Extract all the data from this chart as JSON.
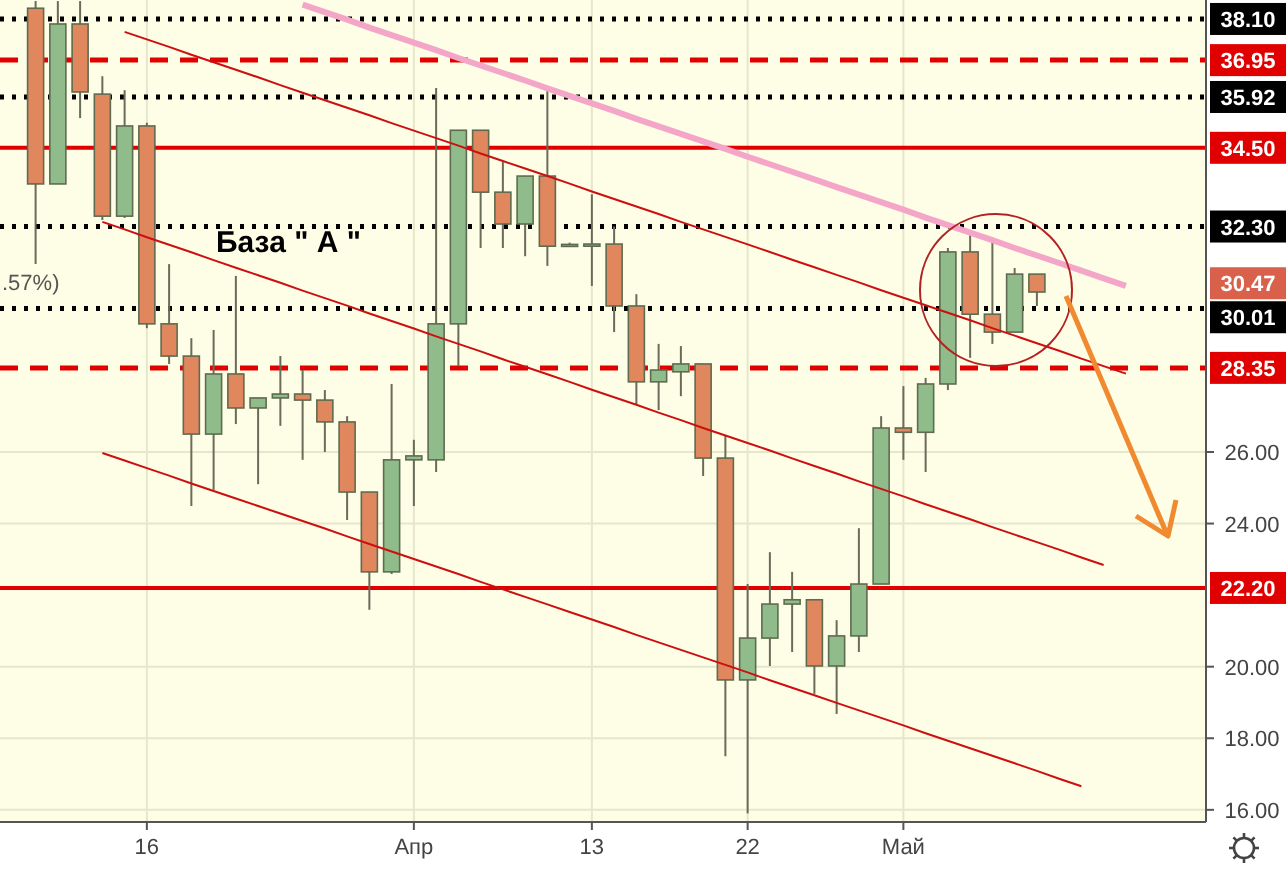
{
  "chart_data": {
    "type": "candlestick",
    "categories": [
      null,
      null,
      null,
      null,
      null,
      "16",
      null,
      null,
      null,
      null,
      null,
      null,
      null,
      null,
      null,
      null,
      null,
      "Апр",
      null,
      null,
      null,
      null,
      null,
      null,
      null,
      "13",
      null,
      null,
      null,
      null,
      null,
      null,
      "22",
      null,
      null,
      null,
      null,
      null,
      null,
      "Май",
      null,
      null,
      null,
      null,
      null,
      null,
      null,
      null,
      null,
      null,
      null,
      null
    ],
    "ohlc": [
      [
        38.4,
        38.6,
        31.25,
        33.49
      ],
      [
        33.49,
        38.6,
        33.49,
        37.96
      ],
      [
        37.96,
        38.6,
        35.33,
        36.06
      ],
      [
        36.0,
        36.5,
        32.48,
        32.59
      ],
      [
        32.59,
        36.11,
        32.54,
        35.11
      ],
      [
        35.11,
        35.2,
        29.46,
        29.58
      ],
      [
        29.58,
        31.25,
        28.46,
        28.68
      ],
      [
        28.68,
        29.18,
        24.49,
        26.5
      ],
      [
        26.5,
        29.41,
        24.94,
        28.18
      ],
      [
        28.18,
        30.92,
        26.78,
        27.23
      ],
      [
        27.23,
        27.51,
        25.1,
        27.51
      ],
      [
        27.51,
        28.68,
        26.73,
        27.62
      ],
      [
        27.62,
        28.29,
        25.78,
        27.45
      ],
      [
        27.45,
        27.73,
        26.0,
        26.84
      ],
      [
        26.84,
        27.0,
        24.1,
        24.88
      ],
      [
        24.88,
        24.88,
        21.59,
        22.65
      ],
      [
        22.65,
        27.9,
        22.59,
        25.78
      ],
      [
        25.78,
        26.34,
        24.49,
        25.89
      ],
      [
        25.78,
        36.17,
        25.44,
        29.58
      ],
      [
        29.58,
        34.99,
        28.4,
        34.99
      ],
      [
        34.99,
        34.99,
        31.7,
        33.26
      ],
      [
        33.26,
        34.1,
        31.7,
        32.37
      ],
      [
        32.37,
        33.71,
        31.47,
        33.71
      ],
      [
        33.71,
        36.22,
        31.2,
        31.75
      ],
      [
        31.8,
        31.85,
        31.78,
        31.8
      ],
      [
        31.75,
        33.2,
        30.64,
        31.81
      ],
      [
        31.81,
        32.3,
        29.35,
        30.08
      ],
      [
        30.08,
        30.41,
        27.34,
        27.96
      ],
      [
        27.96,
        29.02,
        27.17,
        28.29
      ],
      [
        28.24,
        28.96,
        27.56,
        28.46
      ],
      [
        28.46,
        28.46,
        25.33,
        25.83
      ],
      [
        25.83,
        26.45,
        17.5,
        19.63
      ],
      [
        19.63,
        22.31,
        15.9,
        20.8
      ],
      [
        20.8,
        23.2,
        20.02,
        21.75
      ],
      [
        21.75,
        22.65,
        20.41,
        21.87
      ],
      [
        21.87,
        21.87,
        19.24,
        20.02
      ],
      [
        20.02,
        21.3,
        18.68,
        20.86
      ],
      [
        20.86,
        23.87,
        20.41,
        22.31
      ],
      [
        22.31,
        27.0,
        22.31,
        26.67
      ],
      [
        26.67,
        27.84,
        25.78,
        26.55
      ],
      [
        26.55,
        28.07,
        25.44,
        27.9
      ],
      [
        27.9,
        31.7,
        27.73,
        31.59
      ],
      [
        31.59,
        32.15,
        28.63,
        29.85
      ],
      [
        29.85,
        31.87,
        29.02,
        29.35
      ],
      [
        29.35,
        31.14,
        29.35,
        30.97
      ],
      [
        30.97,
        30.97,
        30.08,
        30.47
      ],
      null,
      null,
      null,
      null,
      null,
      null
    ],
    "colors": [
      "#e0875e",
      "#8fbc8a",
      "#e0875e",
      "#e0875e",
      "#8fbc8a",
      "#e0875e",
      "#e0875e",
      "#e0875e",
      "#8fbc8a",
      "#e0875e",
      "#8fbc8a",
      "#8fbc8a",
      "#e0875e",
      "#e0875e",
      "#e0875e",
      "#e0875e",
      "#8fbc8a",
      "#8fbc8a",
      "#8fbc8a",
      "#8fbc8a",
      "#e0875e",
      "#e0875e",
      "#8fbc8a",
      "#e0875e",
      "#8fbc8a",
      "#8fbc8a",
      "#e0875e",
      "#e0875e",
      "#8fbc8a",
      "#8fbc8a",
      "#e0875e",
      "#e0875e",
      "#8fbc8a",
      "#8fbc8a",
      "#8fbc8a",
      "#e0875e",
      "#8fbc8a",
      "#8fbc8a",
      "#8fbc8a",
      "#e0875e",
      "#8fbc8a",
      "#8fbc8a",
      "#e0875e",
      "#e0875e",
      "#8fbc8a",
      "#e0875e",
      null,
      null,
      null,
      null,
      null,
      null
    ],
    "ylim": [
      15.66,
      38.63
    ],
    "yticks": [
      {
        "value": 16,
        "label": "16.00"
      },
      {
        "value": 18,
        "label": "18.00"
      },
      {
        "value": 20,
        "label": "20.00"
      },
      {
        "value": 24,
        "label": "24.00"
      },
      {
        "value": 26,
        "label": "26.00"
      }
    ],
    "grid": true,
    "ref_lines": [
      {
        "axis": "y",
        "value": 38.1,
        "label": "38.10",
        "color": "#000000",
        "line_style": "dotted"
      },
      {
        "axis": "y",
        "value": 36.95,
        "label": "36.95",
        "color": "#e00000",
        "line_style": "dashed"
      },
      {
        "axis": "y",
        "value": 35.92,
        "label": "35.92",
        "color": "#000000",
        "line_style": "dotted"
      },
      {
        "axis": "y",
        "value": 34.5,
        "label": "34.50",
        "color": "#e00000",
        "line_style": "solid"
      },
      {
        "axis": "y",
        "value": 32.3,
        "label": "32.30",
        "color": "#000000",
        "line_style": "dotted"
      },
      {
        "axis": "y",
        "value": 30.01,
        "label": "30.01",
        "color": "#000000",
        "line_style": "dotted"
      },
      {
        "axis": "y",
        "value": 28.35,
        "label": "28.35",
        "color": "#e00000",
        "line_style": "dashed"
      },
      {
        "axis": "y",
        "value": 22.2,
        "label": "22.20",
        "color": "#e00000",
        "line_style": "solid"
      }
    ],
    "series": [
      {
        "type": "line",
        "color": "#f4a6c8",
        "values": [
          null,
          null,
          null,
          null,
          null,
          null,
          null,
          null,
          null,
          null,
          null,
          null,
          38.5,
          38.29,
          38.08,
          37.86,
          37.65,
          37.44,
          37.23,
          37.01,
          36.8,
          36.59,
          36.38,
          36.16,
          35.95,
          35.74,
          35.53,
          35.31,
          35.1,
          34.89,
          34.68,
          34.47,
          34.25,
          34.04,
          33.83,
          33.62,
          33.4,
          33.19,
          32.98,
          32.77,
          32.55,
          32.34,
          32.13,
          31.92,
          31.7,
          31.49,
          31.28,
          31.07,
          30.85,
          30.64,
          null,
          null
        ]
      },
      {
        "type": "line",
        "color": "#cc1010",
        "values": [
          null,
          null,
          null,
          null,
          37.74,
          37.53,
          37.32,
          37.1,
          36.89,
          36.68,
          36.47,
          36.25,
          36.04,
          35.83,
          35.62,
          35.41,
          35.19,
          34.98,
          34.77,
          34.56,
          34.34,
          34.13,
          33.92,
          33.71,
          33.5,
          33.28,
          33.07,
          32.86,
          32.65,
          32.43,
          32.22,
          32.01,
          31.8,
          31.59,
          31.37,
          31.16,
          30.95,
          30.74,
          30.52,
          30.31,
          30.1,
          29.89,
          29.68,
          29.46,
          29.25,
          29.04,
          28.83,
          28.61,
          28.4,
          28.19,
          null,
          null
        ]
      },
      {
        "type": "line",
        "color": "#cc1010",
        "values": [
          null,
          null,
          null,
          32.43,
          32.22,
          32.0,
          31.79,
          31.58,
          31.36,
          31.15,
          30.94,
          30.73,
          30.51,
          30.3,
          30.09,
          29.87,
          29.66,
          29.45,
          29.23,
          29.02,
          28.81,
          28.59,
          28.38,
          28.17,
          27.96,
          27.74,
          27.53,
          27.32,
          27.1,
          26.89,
          26.67,
          26.46,
          26.25,
          26.04,
          25.82,
          25.61,
          25.4,
          25.18,
          24.97,
          24.76,
          24.54,
          24.33,
          24.12,
          23.9,
          23.69,
          23.48,
          23.27,
          23.05,
          22.84,
          null,
          null,
          null
        ]
      },
      {
        "type": "line",
        "color": "#cc1010",
        "values": [
          null,
          null,
          null,
          25.97,
          25.76,
          25.55,
          25.34,
          25.12,
          24.91,
          24.7,
          24.49,
          24.28,
          24.07,
          23.86,
          23.64,
          23.43,
          23.22,
          23.01,
          22.8,
          22.59,
          22.37,
          22.16,
          21.95,
          21.74,
          21.53,
          21.32,
          21.11,
          20.89,
          20.68,
          20.47,
          20.26,
          20.05,
          19.84,
          19.62,
          19.41,
          19.2,
          18.99,
          18.78,
          18.57,
          18.36,
          18.14,
          17.93,
          17.72,
          17.51,
          17.3,
          17.09,
          16.87,
          16.66,
          null,
          null,
          null,
          null
        ]
      }
    ],
    "annotations": [
      "База \" А \"",
      ".57%)",
      "30.47"
    ]
  }
}
